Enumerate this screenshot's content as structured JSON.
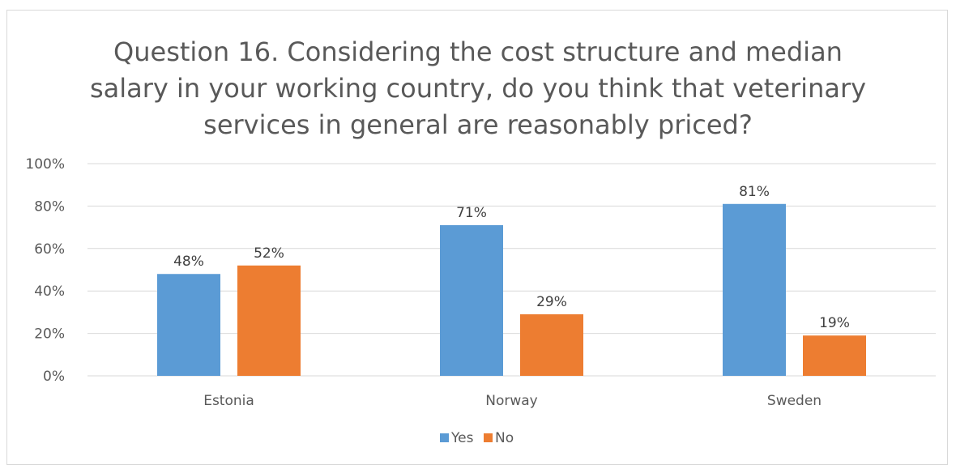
{
  "chart_data": {
    "type": "bar",
    "title_lines": [
      "Question 16. Considering the cost structure and median",
      "salary in your working country, do you think that veterinary",
      "services in general are reasonably priced?"
    ],
    "categories": [
      "Estonia",
      "Norway",
      "Sweden"
    ],
    "series": [
      {
        "name": "Yes",
        "values": [
          48,
          71,
          81
        ],
        "labels": [
          "48%",
          "71%",
          "81%"
        ],
        "color": "#5b9bd5"
      },
      {
        "name": "No",
        "values": [
          52,
          29,
          19
        ],
        "labels": [
          "52%",
          "29%",
          "19%"
        ],
        "color": "#ed7d31"
      }
    ],
    "y_ticks": [
      "0%",
      "20%",
      "40%",
      "60%",
      "80%",
      "100%"
    ],
    "ylim": [
      0,
      100
    ],
    "grid": true,
    "gridline_color": "#d9d9d9",
    "legend_position": "bottom"
  }
}
